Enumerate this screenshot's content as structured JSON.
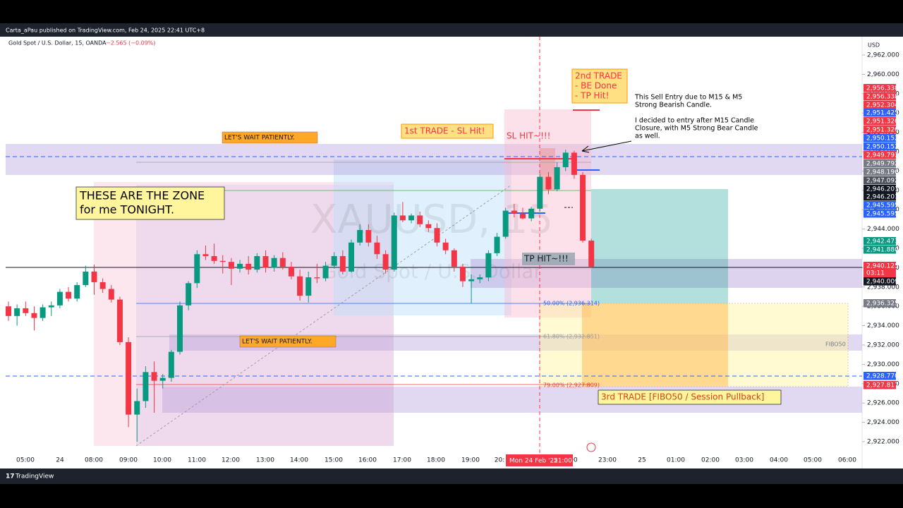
{
  "header": {
    "published": "Carta_aPau published on TradingView.com, Feb 24, 2025 22:41 UTC+8",
    "symbol": "Gold Spot / U.S. Dollar, 15, OANDA",
    "change": "−2.565 (−0.09%)",
    "watermark": "XAUUSD, 15",
    "watermark_sub": "Gold Spot / U.S. Dollar"
  },
  "price_axis": {
    "currency": "USD",
    "ylim": [
      2919.37,
      2963.9
    ],
    "ticks": [
      {
        "value": 2962,
        "label": "2,962.000"
      },
      {
        "value": 2960,
        "label": "2,960.000"
      },
      {
        "value": 2958,
        "label": "2,958.000"
      },
      {
        "value": 2956,
        "label": "2,956.000"
      },
      {
        "value": 2954,
        "label": "2,954.000"
      },
      {
        "value": 2952,
        "label": "2,952.000"
      },
      {
        "value": 2950,
        "label": "2,950.000"
      },
      {
        "value": 2948,
        "label": "2,948.000"
      },
      {
        "value": 2946,
        "label": "2,946.000"
      },
      {
        "value": 2944,
        "label": "2,944.000"
      },
      {
        "value": 2942,
        "label": "2,942.000"
      },
      {
        "value": 2940,
        "label": "2,940.000"
      },
      {
        "value": 2938,
        "label": "2,938.000"
      },
      {
        "value": 2936,
        "label": "2,936.000"
      },
      {
        "value": 2934,
        "label": "2,934.000"
      },
      {
        "value": 2932,
        "label": "2,932.000"
      },
      {
        "value": 2930,
        "label": "2,930.000"
      },
      {
        "value": 2928,
        "label": "2,928.000"
      },
      {
        "value": 2926,
        "label": "2,926.000"
      },
      {
        "value": 2924,
        "label": "2,924.000"
      },
      {
        "value": 2922,
        "label": "2,922.000"
      }
    ],
    "price_tags": [
      {
        "label": "2,956.338",
        "color": "#f23645"
      },
      {
        "label": "2,956.338",
        "color": "#f23645"
      },
      {
        "label": "2,952.304",
        "color": "#f23645"
      },
      {
        "label": "2,951.425",
        "color": "#2962ff"
      },
      {
        "label": "2,951.320",
        "color": "#f23645"
      },
      {
        "label": "2,951.320",
        "color": "#f23645"
      },
      {
        "label": "2,950.152",
        "color": "#2962ff"
      },
      {
        "label": "2,950.152",
        "color": "#2962ff"
      },
      {
        "label": "2,949.793",
        "color": "#f23645"
      },
      {
        "label": "2,949.792",
        "color": "#787b86"
      },
      {
        "label": "2,948.196",
        "color": "#787b86"
      },
      {
        "label": "2,947.092",
        "color": "#50535e"
      },
      {
        "label": "2,946.201",
        "color": "#131722"
      },
      {
        "label": "2,946.201",
        "color": "#131722"
      },
      {
        "label": "2,945.595",
        "color": "#2962ff"
      },
      {
        "label": "2,945.595",
        "color": "#2962ff"
      },
      {
        "label": "2,942.473",
        "color": "#089981"
      },
      {
        "label": "2,941.880",
        "color": "#089981"
      },
      {
        "label": "2,940.125",
        "color": "#f23645",
        "timer": "03:11"
      },
      {
        "label": "2,940.009",
        "color": "#131722"
      },
      {
        "label": "2,936.325",
        "color": "#787b86"
      },
      {
        "label": "2,928.770",
        "color": "#2962ff"
      },
      {
        "label": "2,927.817",
        "color": "#f23645"
      }
    ]
  },
  "time_axis": {
    "labels": [
      "05:00",
      "24",
      "08:00",
      "09:00",
      "10:00",
      "11:00",
      "12:00",
      "13:00",
      "14:00",
      "15:00",
      "16:00",
      "17:00",
      "18:00",
      "19:00",
      "20:",
      "00",
      "23:00",
      "25",
      "01:00",
      "02:00",
      "03:00",
      "04:00",
      "05:00",
      "06:00"
    ],
    "cursor_label": "Mon 24 Feb '25",
    "cursor_time": "21:00"
  },
  "candles": [
    [
      2936,
      2936.5,
      2934.5,
      2935
    ],
    [
      2935,
      2936.2,
      2934,
      2935.8
    ],
    [
      2935.8,
      2936.5,
      2935,
      2935.3
    ],
    [
      2935.3,
      2936,
      2933.5,
      2934.8
    ],
    [
      2934.8,
      2936.2,
      2934.5,
      2935.9
    ],
    [
      2935.9,
      2936.5,
      2935,
      2936.1
    ],
    [
      2936.1,
      2937.8,
      2935.8,
      2937.5
    ],
    [
      2937.5,
      2938,
      2936.5,
      2936.8
    ],
    [
      2936.8,
      2938.5,
      2936.5,
      2938.2
    ],
    [
      2938.2,
      2940.2,
      2938,
      2939.6
    ],
    [
      2939.6,
      2940.3,
      2937.2,
      2938.5
    ],
    [
      2938.5,
      2938.9,
      2937.4,
      2937.8
    ],
    [
      2937.8,
      2938.2,
      2936.4,
      2936.7
    ],
    [
      2936.7,
      2937,
      2932,
      2932.3
    ],
    [
      2932.3,
      2932.8,
      2923.5,
      2924.8
    ],
    [
      2924.8,
      2927.5,
      2922,
      2926.2
    ],
    [
      2926.2,
      2929.8,
      2925.5,
      2929.2
    ],
    [
      2929.2,
      2930.3,
      2925,
      2928.3
    ],
    [
      2928.3,
      2929,
      2927.5,
      2928.6
    ],
    [
      2928.6,
      2931.5,
      2928.2,
      2931.3
    ],
    [
      2931.3,
      2936.5,
      2931,
      2936.1
    ],
    [
      2936.1,
      2938.6,
      2935.6,
      2938.4
    ],
    [
      2938.4,
      2941.8,
      2937.9,
      2941.4
    ],
    [
      2941.4,
      2942.3,
      2940.8,
      2941.2
    ],
    [
      2941.2,
      2942.5,
      2940.4,
      2940.7
    ],
    [
      2940.7,
      2941.3,
      2939.4,
      2940.6
    ],
    [
      2940.6,
      2941,
      2938.2,
      2939.9
    ],
    [
      2939.9,
      2940.8,
      2939.5,
      2940.4
    ],
    [
      2940.4,
      2941.2,
      2939.3,
      2939.8
    ],
    [
      2939.8,
      2941.5,
      2939.5,
      2941.2
    ],
    [
      2941.2,
      2941.8,
      2939.5,
      2940
    ],
    [
      2940,
      2941.3,
      2939.6,
      2941
    ],
    [
      2941,
      2941.6,
      2939.8,
      2940.1
    ],
    [
      2940.1,
      2940.6,
      2938.8,
      2939.1
    ],
    [
      2939.1,
      2939.8,
      2936.6,
      2937.1
    ],
    [
      2937.1,
      2939.6,
      2936.4,
      2939
    ],
    [
      2939,
      2940.4,
      2938.4,
      2938.9
    ],
    [
      2938.9,
      2940.6,
      2938.6,
      2940.2
    ],
    [
      2940.2,
      2941.6,
      2939.9,
      2941.2
    ],
    [
      2941.2,
      2941.8,
      2939.3,
      2939.6
    ],
    [
      2939.6,
      2942.9,
      2939.5,
      2942.6
    ],
    [
      2942.6,
      2944.5,
      2942.3,
      2943.9
    ],
    [
      2943.9,
      2944.5,
      2942.2,
      2942.6
    ],
    [
      2942.6,
      2943.3,
      2940.9,
      2941.4
    ],
    [
      2941.4,
      2941.8,
      2939.4,
      2939.8
    ],
    [
      2939.8,
      2945.7,
      2939.6,
      2945.4
    ],
    [
      2945.4,
      2946.8,
      2944.7,
      2944.9
    ],
    [
      2944.9,
      2945.6,
      2944.6,
      2945.4
    ],
    [
      2945.4,
      2945.8,
      2944.2,
      2944.5
    ],
    [
      2944.5,
      2944.9,
      2943.7,
      2944.1
    ],
    [
      2944.1,
      2944.6,
      2942.2,
      2942.6
    ],
    [
      2942.6,
      2943,
      2941.4,
      2941.8
    ],
    [
      2941.8,
      2942,
      2939.6,
      2940.1
    ],
    [
      2940.1,
      2940.4,
      2938,
      2938.6
    ],
    [
      2938.6,
      2939.3,
      2936.3,
      2938.8
    ],
    [
      2938.8,
      2939.3,
      2938.4,
      2939
    ],
    [
      2939,
      2941.8,
      2938.6,
      2941.5
    ],
    [
      2941.5,
      2943.6,
      2941.2,
      2943.2
    ],
    [
      2943.2,
      2946.2,
      2943,
      2945.9
    ],
    [
      2945.9,
      2946.6,
      2945.2,
      2945.6
    ],
    [
      2945.6,
      2946.2,
      2945,
      2945.1
    ],
    [
      2945.1,
      2946.3,
      2944.8,
      2946.1
    ],
    [
      2946.1,
      2949.7,
      2945.8,
      2949.4
    ],
    [
      2949.4,
      2949.9,
      2947.6,
      2948.1
    ],
    [
      2948.1,
      2950.9,
      2947.9,
      2950.4
    ],
    [
      2950.4,
      2952.2,
      2950,
      2951.9
    ],
    [
      2951.9,
      2952.1,
      2949.2,
      2949.6
    ],
    [
      2949.6,
      2949.9,
      2942.6,
      2942.8
    ],
    [
      2942.8,
      2943,
      2940,
      2940.1
    ]
  ],
  "candle_colors": {
    "up": "#089981",
    "down": "#f23645"
  },
  "annotations": {
    "wait_1": "LET'S WAIT PATIENTLY.",
    "wait_2": "LET'S WAIT PATIENTLY.",
    "zone": [
      "THESE ARE THE ZONE",
      "for me TONIGHT."
    ],
    "trade_1": "1st TRADE - SL Hit!",
    "sl_hit": "SL HIT~!!!",
    "trade_2": [
      "2nd TRADE",
      "- BE Done",
      "- TP Hit!"
    ],
    "note_1": [
      "This Sell Entry due to M15 & M5",
      "Strong Bearish Candle."
    ],
    "note_2": [
      "I decided to entry after M15 Candle",
      "Closure, with M5 Strong Bear Candle",
      "as well."
    ],
    "tp_hit": "TP HIT~!!!",
    "trade_3": "3rd TRADE [FIBO50 / Session Pullback]",
    "fibo_tag": "FIBO50",
    "fib_levels": [
      "50.00% (2,936.314)",
      "61.80% (2,932.851)",
      "79.00% (2,927.809)"
    ]
  },
  "footer": {
    "brand": "TradingView"
  }
}
